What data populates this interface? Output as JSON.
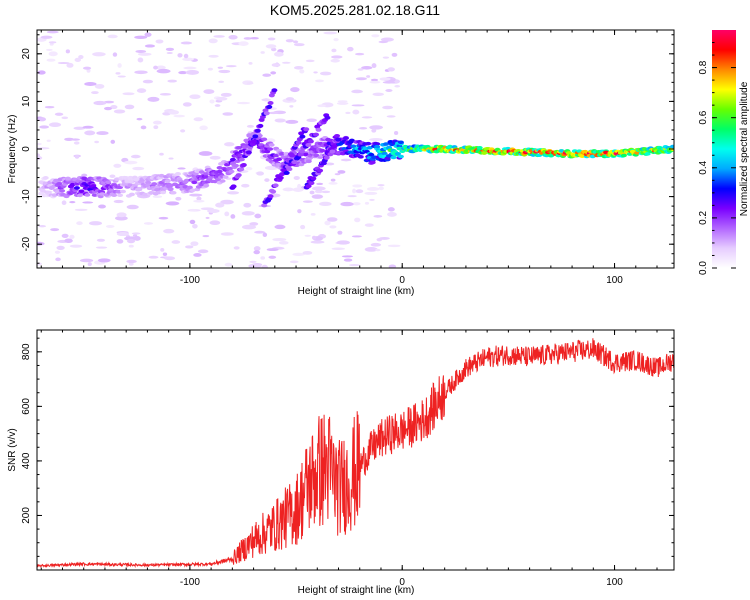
{
  "title": "KOM5.2025.281.02.18.G11",
  "chart_data": [
    {
      "type": "heatmap",
      "title": "KOM5.2025.281.02.18.G11",
      "xlabel": "Height of straight line (km)",
      "ylabel": "Frequency (Hz)",
      "xlim": [
        -172,
        128
      ],
      "ylim": [
        -25,
        25
      ],
      "xticks": [
        "-100",
        "0",
        "100"
      ],
      "yticks": [
        "-20",
        "-10",
        "0",
        "10",
        "20"
      ],
      "colorbar": {
        "label": "Normalized spectral amplitude",
        "range": [
          0,
          0.95
        ],
        "ticks": [
          "0.0",
          "0.2",
          "0.4",
          "0.6",
          "0.8"
        ],
        "colormap": [
          "#ffffff",
          "#e6ccff",
          "#b266ff",
          "#7a00ff",
          "#0000ff",
          "#00aaff",
          "#00ffee",
          "#00ff66",
          "#66ff00",
          "#ffff00",
          "#ff8800",
          "#ff0000",
          "#ff0066"
        ]
      },
      "ridge": [
        {
          "x": -170,
          "f": -8,
          "a": 0.08
        },
        {
          "x": -150,
          "f": -8,
          "a": 0.3
        },
        {
          "x": -130,
          "f": -8,
          "a": 0.12
        },
        {
          "x": -100,
          "f": -7,
          "a": 0.18
        },
        {
          "x": -85,
          "f": -5,
          "a": 0.22
        },
        {
          "x": -70,
          "f": 2,
          "a": 0.25
        },
        {
          "x": -55,
          "f": -3,
          "a": 0.22
        },
        {
          "x": -40,
          "f": 0,
          "a": 0.2
        },
        {
          "x": -30,
          "f": 1,
          "a": 0.35
        },
        {
          "x": -15,
          "f": -1,
          "a": 0.45
        },
        {
          "x": 0,
          "f": 0,
          "a": 0.6
        },
        {
          "x": 20,
          "f": 0,
          "a": 0.8
        },
        {
          "x": 50,
          "f": -0.5,
          "a": 0.9
        },
        {
          "x": 80,
          "f": -1,
          "a": 0.85
        },
        {
          "x": 100,
          "f": -1,
          "a": 0.9
        },
        {
          "x": 128,
          "f": 0,
          "a": 0.7
        }
      ]
    },
    {
      "type": "line",
      "xlabel": "Height of straight line (km)",
      "ylabel": "SNR (v/v)",
      "xlim": [
        -172,
        128
      ],
      "ylim": [
        0,
        880
      ],
      "xticks": [
        "-100",
        "0",
        "100"
      ],
      "yticks": [
        "200",
        "400",
        "600",
        "800"
      ],
      "color": "#ee2222",
      "series": [
        {
          "name": "SNR",
          "x": [
            -172,
            -150,
            -120,
            -90,
            -80,
            -70,
            -60,
            -50,
            -45,
            -40,
            -35,
            -30,
            -25,
            -20,
            -15,
            -10,
            -5,
            0,
            10,
            20,
            30,
            40,
            50,
            60,
            70,
            80,
            90,
            100,
            110,
            120,
            128
          ],
          "y": [
            15,
            22,
            18,
            22,
            40,
            110,
            160,
            220,
            300,
            360,
            380,
            300,
            330,
            380,
            440,
            480,
            500,
            510,
            550,
            650,
            740,
            780,
            790,
            780,
            790,
            800,
            810,
            760,
            770,
            740,
            770
          ]
        }
      ]
    }
  ]
}
